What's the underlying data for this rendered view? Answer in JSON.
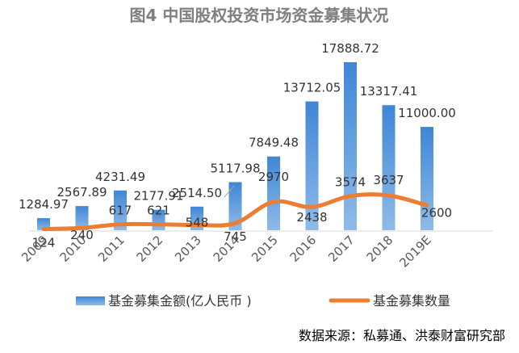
{
  "chart_data": {
    "type": "bar",
    "title": "图4 中国股权投资市场资金募集状况",
    "categories": [
      "2009",
      "2010",
      "2011",
      "2012",
      "2013",
      "2014",
      "2015",
      "2016",
      "2017",
      "2018",
      "2019E"
    ],
    "series": [
      {
        "name": "基金募集金额(亿人民币 )",
        "type": "bar",
        "color": "#4f8fd3",
        "values": [
          1284.97,
          2567.89,
          4231.49,
          2177.91,
          2514.5,
          5117.98,
          7849.48,
          13712.05,
          17888.72,
          13317.41,
          11000.0
        ],
        "labels": [
          "1284.97",
          "2567.89",
          "4231.49",
          "2177.91",
          "2514.50",
          "5117.98",
          "7849.48",
          "13712.05",
          "17888.72",
          "13317.41",
          "11000.00"
        ]
      },
      {
        "name": "基金募集数量",
        "type": "line",
        "color": "#ed7d31",
        "values": [
          124,
          240,
          617,
          621,
          548,
          745,
          2970,
          2438,
          3574,
          3637,
          2600
        ],
        "labels": [
          "124",
          "240",
          "617",
          "621",
          "548",
          "745",
          "2970",
          "2438",
          "3574",
          "3637",
          "2600"
        ]
      }
    ],
    "grid": false,
    "legend": "bottom"
  },
  "source": "数据来源：私募通、洪泰财富研究部"
}
